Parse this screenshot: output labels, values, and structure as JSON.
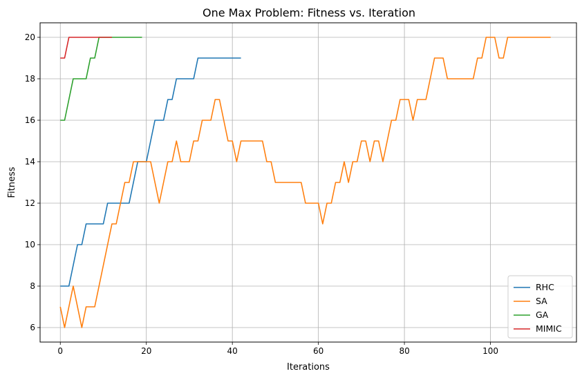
{
  "chart_data": {
    "type": "line",
    "title": "One Max Problem: Fitness vs. Iteration",
    "xlabel": "Iterations",
    "ylabel": "Fitness",
    "xlim": [
      -4.7,
      120
    ],
    "ylim": [
      5.3,
      20.7
    ],
    "xticks": [
      0,
      20,
      40,
      60,
      80,
      100
    ],
    "yticks": [
      6,
      8,
      10,
      12,
      14,
      16,
      18,
      20
    ],
    "grid": true,
    "legend_position": "bottom-right",
    "series": [
      {
        "name": "RHC",
        "color": "#1f77b4",
        "x": [
          0,
          1,
          2,
          3,
          4,
          5,
          6,
          7,
          8,
          9,
          10,
          11,
          12,
          13,
          14,
          15,
          16,
          17,
          18,
          19,
          20,
          21,
          22,
          23,
          24,
          25,
          26,
          27,
          28,
          29,
          30,
          31,
          32,
          33,
          34,
          35,
          36,
          37,
          38,
          39,
          40,
          41,
          42
        ],
        "y": [
          8,
          8,
          8,
          9,
          10,
          10,
          11,
          11,
          11,
          11,
          11,
          12,
          12,
          12,
          12,
          12,
          12,
          13,
          14,
          14,
          14,
          15,
          16,
          16,
          16,
          17,
          17,
          18,
          18,
          18,
          18,
          18,
          19,
          19,
          19,
          19,
          19,
          19,
          19,
          19,
          19,
          19,
          19
        ]
      },
      {
        "name": "SA",
        "color": "#ff7f0e",
        "x": [
          0,
          1,
          2,
          3,
          4,
          5,
          6,
          7,
          8,
          9,
          10,
          11,
          12,
          13,
          14,
          15,
          16,
          17,
          18,
          19,
          20,
          21,
          22,
          23,
          24,
          25,
          26,
          27,
          28,
          29,
          30,
          31,
          32,
          33,
          34,
          35,
          36,
          37,
          38,
          39,
          40,
          41,
          42,
          43,
          44,
          45,
          46,
          47,
          48,
          49,
          50,
          51,
          52,
          53,
          54,
          55,
          56,
          57,
          58,
          59,
          60,
          61,
          62,
          63,
          64,
          65,
          66,
          67,
          68,
          69,
          70,
          71,
          72,
          73,
          74,
          75,
          76,
          77,
          78,
          79,
          80,
          81,
          82,
          83,
          84,
          85,
          86,
          87,
          88,
          89,
          90,
          91,
          92,
          93,
          94,
          95,
          96,
          97,
          98,
          99,
          100,
          101,
          102,
          103,
          104,
          105,
          106,
          107,
          108,
          109,
          110,
          111,
          112,
          113,
          114
        ],
        "y": [
          7,
          6,
          7,
          8,
          7,
          6,
          7,
          7,
          7,
          8,
          9,
          10,
          11,
          11,
          12,
          13,
          13,
          14,
          14,
          14,
          14,
          14,
          13,
          12,
          13,
          14,
          14,
          15,
          14,
          14,
          14,
          15,
          15,
          16,
          16,
          16,
          17,
          17,
          16,
          15,
          15,
          14,
          15,
          15,
          15,
          15,
          15,
          15,
          14,
          14,
          13,
          13,
          13,
          13,
          13,
          13,
          13,
          12,
          12,
          12,
          12,
          11,
          12,
          12,
          13,
          13,
          14,
          13,
          14,
          14,
          15,
          15,
          14,
          15,
          15,
          14,
          15,
          16,
          16,
          17,
          17,
          17,
          16,
          17,
          17,
          17,
          18,
          19,
          19,
          19,
          18,
          18,
          18,
          18,
          18,
          18,
          18,
          19,
          19,
          20,
          20,
          20,
          19,
          19,
          20,
          20,
          20,
          20,
          20,
          20,
          20,
          20,
          20,
          20,
          20
        ]
      },
      {
        "name": "GA",
        "color": "#2ca02c",
        "x": [
          0,
          1,
          2,
          3,
          4,
          5,
          6,
          7,
          8,
          9,
          10,
          11,
          12,
          13,
          14,
          15,
          16,
          17,
          18,
          19
        ],
        "y": [
          16,
          16,
          17,
          18,
          18,
          18,
          18,
          19,
          19,
          20,
          20,
          20,
          20,
          20,
          20,
          20,
          20,
          20,
          20,
          20
        ]
      },
      {
        "name": "MIMIC",
        "color": "#d62728",
        "x": [
          0,
          1,
          2,
          3,
          4,
          5,
          6,
          7,
          8,
          9,
          10,
          11,
          12
        ],
        "y": [
          19,
          19,
          20,
          20,
          20,
          20,
          20,
          20,
          20,
          20,
          20,
          20,
          20
        ]
      }
    ]
  }
}
